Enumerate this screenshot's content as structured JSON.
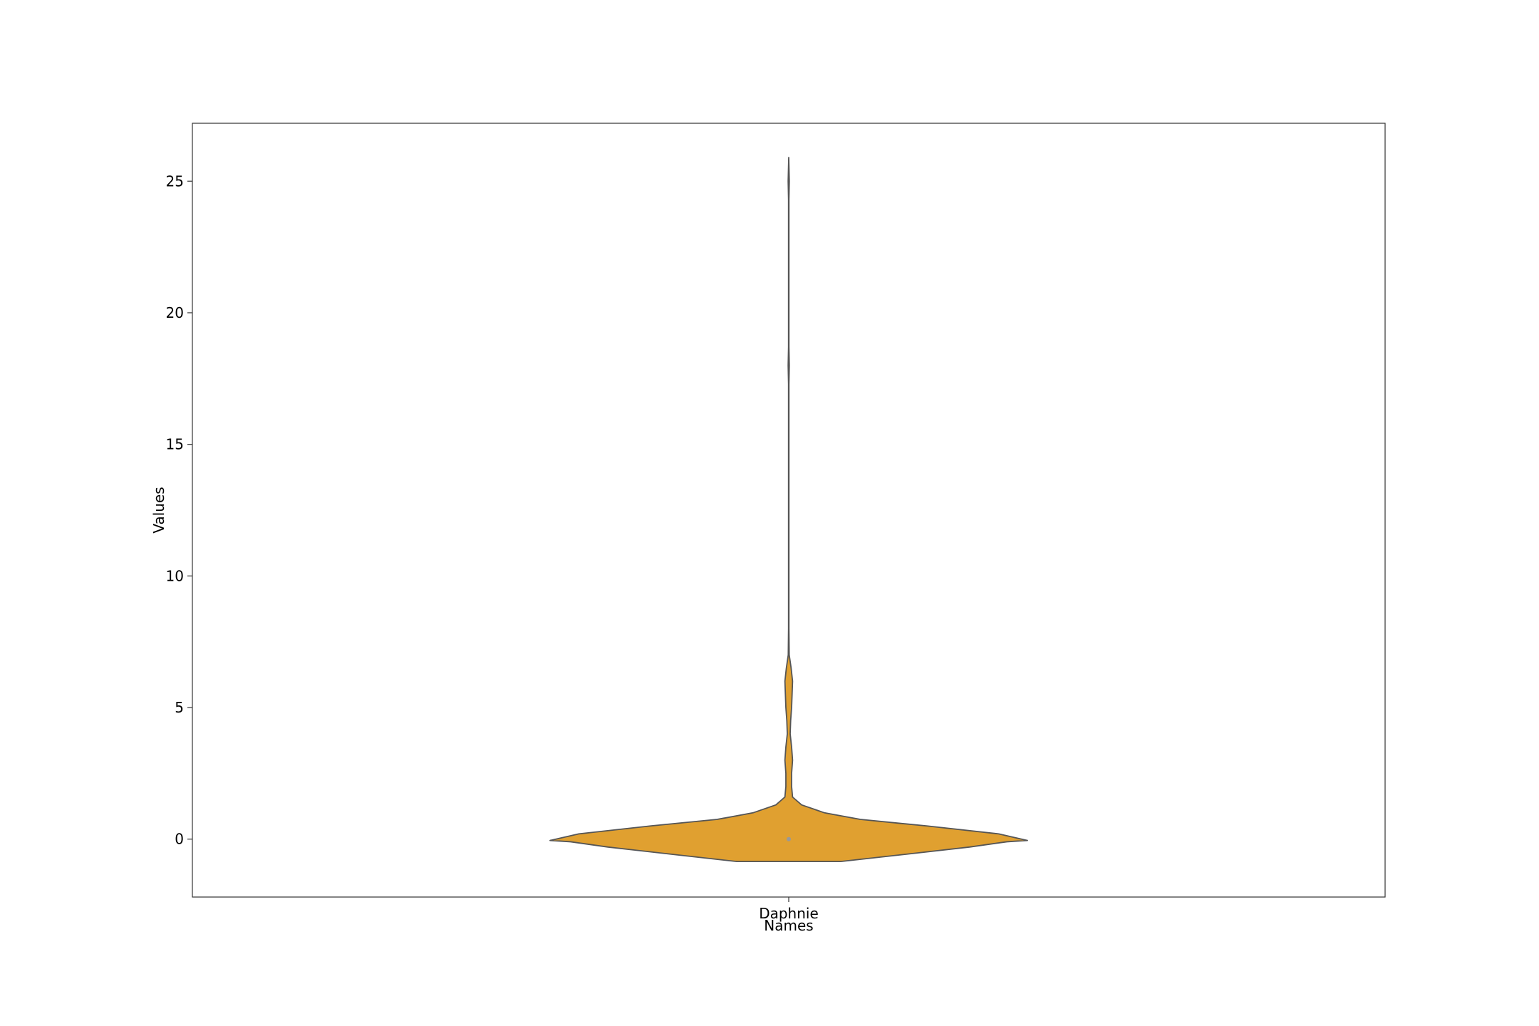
{
  "chart_data": {
    "type": "violin",
    "xlabel": "Names",
    "ylabel": "Values",
    "categories": [
      "Daphnie"
    ],
    "ylim": [
      -2.2,
      27.2
    ],
    "yticks": [
      0,
      5,
      10,
      15,
      20,
      25
    ],
    "ytick_labels": [
      "0",
      "5",
      "10",
      "15",
      "20",
      "25"
    ],
    "grid": false,
    "fill_color": "#e0a030",
    "edge_color": "#555555",
    "median_color": "#999999",
    "violins": [
      {
        "category": "Daphnie",
        "median": 0,
        "data_min": 0,
        "data_max": 25,
        "profile": [
          {
            "y": -0.85,
            "w": 0.0
          },
          {
            "y": -0.85,
            "w": 0.109
          },
          {
            "y": -0.6,
            "w": 0.233
          },
          {
            "y": -0.3,
            "w": 0.379
          },
          {
            "y": -0.1,
            "w": 0.457
          },
          {
            "y": -0.05,
            "w": 0.5
          },
          {
            "y": 0.2,
            "w": 0.44
          },
          {
            "y": 0.5,
            "w": 0.29
          },
          {
            "y": 0.75,
            "w": 0.15
          },
          {
            "y": 1.0,
            "w": 0.075
          },
          {
            "y": 1.3,
            "w": 0.027
          },
          {
            "y": 1.6,
            "w": 0.008
          },
          {
            "y": 2.0,
            "w": 0.006
          },
          {
            "y": 2.5,
            "w": 0.006
          },
          {
            "y": 3.0,
            "w": 0.008
          },
          {
            "y": 3.5,
            "w": 0.006
          },
          {
            "y": 4.0,
            "w": 0.003
          },
          {
            "y": 4.5,
            "w": 0.004
          },
          {
            "y": 5.0,
            "w": 0.006
          },
          {
            "y": 5.5,
            "w": 0.007
          },
          {
            "y": 6.0,
            "w": 0.008
          },
          {
            "y": 6.5,
            "w": 0.005
          },
          {
            "y": 7.0,
            "w": 0.001
          },
          {
            "y": 8.0,
            "w": 0.0004
          },
          {
            "y": 12.0,
            "w": 0.0004
          },
          {
            "y": 17.3,
            "w": 0.0004
          },
          {
            "y": 18.0,
            "w": 0.0012
          },
          {
            "y": 18.7,
            "w": 0.0004
          },
          {
            "y": 24.3,
            "w": 0.0004
          },
          {
            "y": 25.0,
            "w": 0.0012
          },
          {
            "y": 25.9,
            "w": 0.0
          }
        ]
      }
    ]
  }
}
